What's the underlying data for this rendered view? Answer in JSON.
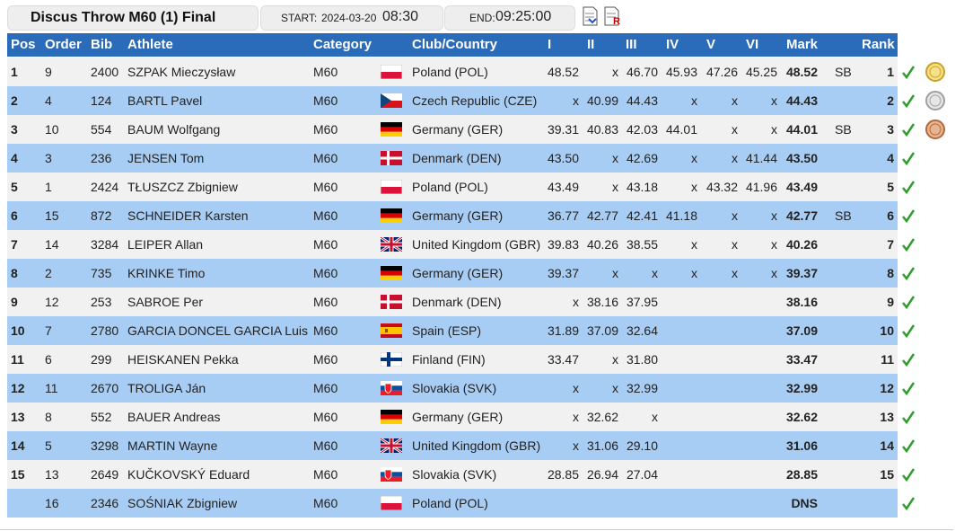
{
  "header": {
    "title": "Discus Throw M60 (1) Final",
    "start_label": "START:",
    "start_date": "2024-03-20",
    "start_time": "08:30",
    "end_label": "END:",
    "end_time": "09:25:00"
  },
  "table": {
    "columns": [
      "Pos",
      "Order",
      "Bib",
      "Athlete",
      "Category",
      "Club/Country",
      "I",
      "II",
      "III",
      "IV",
      "V",
      "VI",
      "Mark",
      "Rank"
    ],
    "rows": [
      {
        "pos": "1",
        "order": "9",
        "bib": "2400",
        "athlete": "SZPAK Mieczysław",
        "category": "M60",
        "club": "Poland (POL)",
        "attempts": [
          "48.52",
          "x",
          "46.70",
          "45.93",
          "47.26",
          "45.25"
        ],
        "mark": "48.52",
        "note": "SB",
        "rank": "1"
      },
      {
        "pos": "2",
        "order": "4",
        "bib": "124",
        "athlete": "BARTL Pavel",
        "category": "M60",
        "club": "Czech Republic (CZE)",
        "attempts": [
          "x",
          "40.99",
          "44.43",
          "x",
          "x",
          "x"
        ],
        "mark": "44.43",
        "rank": "2"
      },
      {
        "pos": "3",
        "order": "10",
        "bib": "554",
        "athlete": "BAUM Wolfgang",
        "category": "M60",
        "club": "Germany (GER)",
        "attempts": [
          "39.31",
          "40.83",
          "42.03",
          "44.01",
          "x",
          "x"
        ],
        "mark": "44.01",
        "note": "SB",
        "rank": "3"
      },
      {
        "pos": "4",
        "order": "3",
        "bib": "236",
        "athlete": "JENSEN Tom",
        "category": "M60",
        "club": "Denmark (DEN)",
        "attempts": [
          "43.50",
          "x",
          "42.69",
          "x",
          "x",
          "41.44"
        ],
        "mark": "43.50",
        "rank": "4"
      },
      {
        "pos": "5",
        "order": "1",
        "bib": "2424",
        "athlete": "TŁUSZCZ Zbigniew",
        "category": "M60",
        "club": "Poland (POL)",
        "attempts": [
          "43.49",
          "x",
          "43.18",
          "x",
          "43.32",
          "41.96"
        ],
        "mark": "43.49",
        "rank": "5"
      },
      {
        "pos": "6",
        "order": "15",
        "bib": "872",
        "athlete": "SCHNEIDER Karsten",
        "category": "M60",
        "club": "Germany (GER)",
        "attempts": [
          "36.77",
          "42.77",
          "42.41",
          "41.18",
          "x",
          "x"
        ],
        "mark": "42.77",
        "note": "SB",
        "rank": "6"
      },
      {
        "pos": "7",
        "order": "14",
        "bib": "3284",
        "athlete": "LEIPER Allan",
        "category": "M60",
        "club": "United Kingdom (GBR)",
        "attempts": [
          "39.83",
          "40.26",
          "38.55",
          "x",
          "x",
          "x"
        ],
        "mark": "40.26",
        "rank": "7"
      },
      {
        "pos": "8",
        "order": "2",
        "bib": "735",
        "athlete": "KRINKE Timo",
        "category": "M60",
        "club": "Germany (GER)",
        "attempts": [
          "39.37",
          "x",
          "x",
          "x",
          "x",
          "x"
        ],
        "mark": "39.37",
        "rank": "8"
      },
      {
        "pos": "9",
        "order": "12",
        "bib": "253",
        "athlete": "SABROE Per",
        "category": "M60",
        "club": "Denmark (DEN)",
        "attempts": [
          "x",
          "38.16",
          "37.95"
        ],
        "mark": "38.16",
        "rank": "9"
      },
      {
        "pos": "10",
        "order": "7",
        "bib": "2780",
        "athlete": "GARCIA DONCEL GARCIA Luis",
        "category": "M60",
        "club": "Spain (ESP)",
        "attempts": [
          "31.89",
          "37.09",
          "32.64"
        ],
        "mark": "37.09",
        "rank": "10"
      },
      {
        "pos": "11",
        "order": "6",
        "bib": "299",
        "athlete": "HEISKANEN Pekka",
        "category": "M60",
        "club": "Finland (FIN)",
        "attempts": [
          "33.47",
          "x",
          "31.80"
        ],
        "mark": "33.47",
        "rank": "11"
      },
      {
        "pos": "12",
        "order": "11",
        "bib": "2670",
        "athlete": "TROLIGA Ján",
        "category": "M60",
        "club": "Slovakia (SVK)",
        "attempts": [
          "x",
          "x",
          "32.99"
        ],
        "mark": "32.99",
        "rank": "12"
      },
      {
        "pos": "13",
        "order": "8",
        "bib": "552",
        "athlete": "BAUER Andreas",
        "category": "M60",
        "club": "Germany (GER)",
        "attempts": [
          "x",
          "32.62",
          "x"
        ],
        "mark": "32.62",
        "rank": "13"
      },
      {
        "pos": "14",
        "order": "5",
        "bib": "3298",
        "athlete": "MARTIN Wayne",
        "category": "M60",
        "club": "United Kingdom (GBR)",
        "attempts": [
          "x",
          "31.06",
          "29.10"
        ],
        "mark": "31.06",
        "rank": "14"
      },
      {
        "pos": "15",
        "order": "13",
        "bib": "2649",
        "athlete": "KUČKOVSKÝ Eduard",
        "category": "M60",
        "club": "Slovakia (SVK)",
        "attempts": [
          "28.85",
          "26.94",
          "27.04"
        ],
        "mark": "28.85",
        "rank": "15"
      },
      {
        "order": "16",
        "bib": "2346",
        "athlete": "SOŚNIAK Zbigniew",
        "category": "M60",
        "club": "Poland (POL)",
        "mark": "DNS"
      }
    ]
  }
}
